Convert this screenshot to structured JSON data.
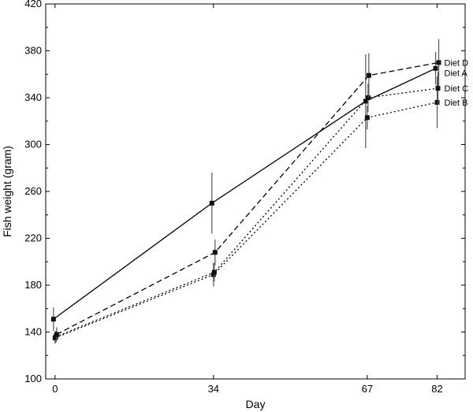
{
  "chart_data": {
    "type": "line",
    "title": "",
    "xlabel": "Day",
    "ylabel": "Fish weight (gram)",
    "x_ticks": [
      0,
      34,
      67,
      82
    ],
    "y_ticks": [
      100,
      140,
      180,
      220,
      260,
      300,
      340,
      380,
      420
    ],
    "xlim": [
      -2,
      88
    ],
    "ylim": [
      100,
      420
    ],
    "grid": false,
    "series": [
      {
        "name": "Diet A",
        "line_style": "solid",
        "points": [
          {
            "x": 0,
            "y": 151,
            "err": 10
          },
          {
            "x": 34,
            "y": 250,
            "err": 26
          },
          {
            "x": 67,
            "y": 337,
            "err": 40
          },
          {
            "x": 82,
            "y": 365,
            "err": 14
          }
        ]
      },
      {
        "name": "Diet B",
        "line_style": "dotted",
        "points": [
          {
            "x": 0,
            "y": 135,
            "err": 5
          },
          {
            "x": 34,
            "y": 189,
            "err": 10
          },
          {
            "x": 67,
            "y": 323,
            "err": 10
          },
          {
            "x": 82,
            "y": 336,
            "err": 22
          }
        ]
      },
      {
        "name": "Diet C",
        "line_style": "dotted",
        "points": [
          {
            "x": 0,
            "y": 136,
            "err": 5
          },
          {
            "x": 34,
            "y": 191,
            "err": 8
          },
          {
            "x": 67,
            "y": 340,
            "err": 12
          },
          {
            "x": 82,
            "y": 348,
            "err": 14
          }
        ]
      },
      {
        "name": "Diet D",
        "line_style": "dashed",
        "points": [
          {
            "x": 0,
            "y": 138,
            "err": 6
          },
          {
            "x": 34,
            "y": 208,
            "err": 11
          },
          {
            "x": 67,
            "y": 359,
            "err": 19
          },
          {
            "x": 82,
            "y": 370,
            "err": 20
          }
        ]
      }
    ]
  }
}
